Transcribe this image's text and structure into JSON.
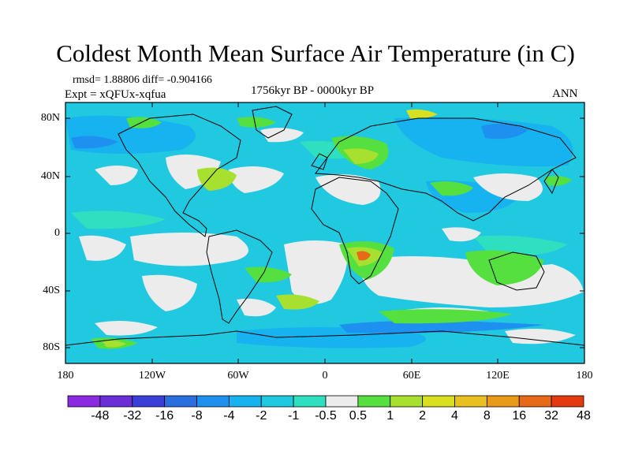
{
  "title": "Coldest Month Mean Surface Air Temperature (in C)",
  "stats": {
    "rmsd": "rmsd= 1.88806 diff= -0.904166",
    "expt": "Expt = xQFUx-xqfua"
  },
  "period": "1756kyr BP - 0000kyr BP",
  "season": "ANN",
  "lat_labels": [
    "80N",
    "40N",
    "0",
    "40S",
    "80S"
  ],
  "lon_labels": [
    "180",
    "120W",
    "60W",
    "0",
    "60E",
    "120E",
    "180"
  ],
  "colorbar": {
    "labels": [
      "-48",
      "-32",
      "-16",
      "-8",
      "-4",
      "-2",
      "-1",
      "-0.5",
      "0.5",
      "1",
      "2",
      "4",
      "8",
      "16",
      "32",
      "48"
    ],
    "colors": [
      "#8a2be2",
      "#6b2fd8",
      "#3a3fd8",
      "#2a6ee0",
      "#1e90f0",
      "#17b3f0",
      "#20c8e0",
      "#2ee0c0",
      "#ececec",
      "#55e040",
      "#a8e030",
      "#d8e020",
      "#e8c020",
      "#e89a18",
      "#e86a18",
      "#e43a10"
    ]
  },
  "field_colors": {
    "ocean": "#20c8e0",
    "neg_light": "#2ee0c0",
    "neg_mid": "#17b3f0",
    "neg_strong": "#1e90f0",
    "neutral": "#ececec",
    "pos_light": "#55e040",
    "pos_mid": "#a8e030",
    "pos_strong": "#d8e020",
    "hot": "#e89a18",
    "hotter": "#e86a18"
  }
}
